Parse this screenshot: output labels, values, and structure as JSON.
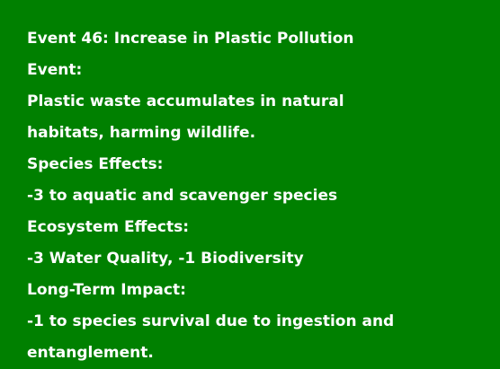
{
  "event": {
    "title": "Event 46: Increase in Plastic Pollution",
    "event_label": "Event:",
    "description_line1": "Plastic waste accumulates in natural",
    "description_line2": "habitats, harming wildlife.",
    "species_effects_label": "Species Effects:",
    "species_effects_value": "-3 to aquatic and scavenger species",
    "ecosystem_effects_label": "Ecosystem Effects:",
    "ecosystem_effects_value": "-3 Water Quality, -1 Biodiversity",
    "long_term_label": "Long-Term Impact:",
    "long_term_value_line1": "-1 to species survival due to ingestion and",
    "long_term_value_line2": "entanglement."
  },
  "colors": {
    "background": "#008000",
    "text": "#ffffff"
  }
}
